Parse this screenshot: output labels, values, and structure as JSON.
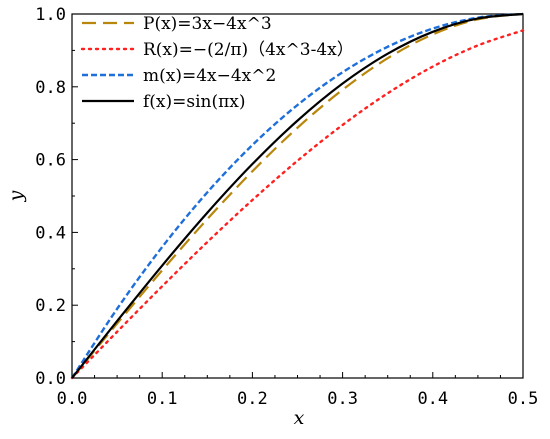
{
  "chart_data": {
    "type": "line",
    "xlabel": "x",
    "ylabel": "y",
    "xlim": [
      0.0,
      0.5
    ],
    "ylim": [
      0.0,
      1.0
    ],
    "x_ticks": [
      "0.0",
      "0.1",
      "0.2",
      "0.3",
      "0.4",
      "0.5"
    ],
    "y_ticks": [
      "0.0",
      "0.2",
      "0.4",
      "0.6",
      "0.8",
      "1.0"
    ],
    "x": [
      0.0,
      0.05,
      0.1,
      0.15,
      0.2,
      0.25,
      0.3,
      0.35,
      0.4,
      0.45,
      0.5
    ],
    "grid": false,
    "legend_position": "top-left",
    "series": [
      {
        "name": "P(x)=3x−4x^3",
        "color": "#b8860b",
        "dash": "long-dash",
        "values": [
          0.0,
          0.1495,
          0.296,
          0.4365,
          0.568,
          0.6875,
          0.792,
          0.8785,
          0.944,
          0.9855,
          1.0
        ]
      },
      {
        "name": "R(x)=−(2/π)（4x^3-4x）",
        "color": "#ff2020",
        "dash": "dotted",
        "values": [
          0.0,
          0.127,
          0.2521,
          0.3734,
          0.4889,
          0.5968,
          0.6952,
          0.7822,
          0.8556,
          0.9137,
          0.9549
        ]
      },
      {
        "name": "m(x)=4x−4x^2",
        "color": "#1e6fd9",
        "dash": "short-dash",
        "values": [
          0.0,
          0.19,
          0.36,
          0.51,
          0.64,
          0.75,
          0.84,
          0.91,
          0.96,
          0.99,
          1.0
        ]
      },
      {
        "name": "f(x)=sin(πx)",
        "color": "#000000",
        "dash": "solid",
        "values": [
          0.0,
          0.1564,
          0.309,
          0.454,
          0.5878,
          0.7071,
          0.809,
          0.891,
          0.9511,
          0.9877,
          1.0
        ]
      }
    ]
  }
}
